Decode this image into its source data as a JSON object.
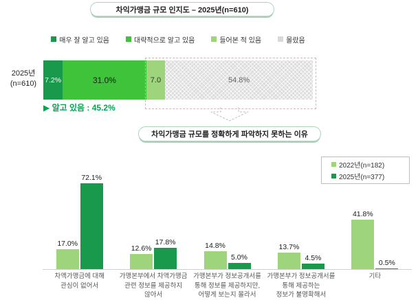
{
  "colors": {
    "green_dark": "#18994b",
    "green_bright": "#3ec33a",
    "green_light": "#9ed57c",
    "gray_segment": "#dcdcdc",
    "note_green": "#00a651",
    "dashed_outline": "#ccb8b8"
  },
  "top_chart": {
    "title": "차익가맹금 규모 인지도 – 2025년(n=610)",
    "row_label_line1": "2025년",
    "row_label_line2": "(n=610)",
    "known_note": "▶ 알고 있음 : 45.2%",
    "legend": [
      {
        "label": "매우 잘 알고 있음",
        "color": "#18994b"
      },
      {
        "label": "대략적으로 알고 있음",
        "color": "#3ec33a"
      },
      {
        "label": "들어본 적 있음",
        "color": "#9ed57c"
      },
      {
        "label": "몰랐음",
        "color": "#d9d9d9"
      }
    ],
    "segments": [
      {
        "label": "7.2%",
        "value": 7.2,
        "color": "#18994b"
      },
      {
        "label": "31.0%",
        "value": 31.0,
        "color": "#3ec33a"
      },
      {
        "label": "7.0",
        "value": 7.0,
        "color": "#9ed57c"
      },
      {
        "label": "54.8%",
        "value": 54.8,
        "color": "#dcdcdc"
      }
    ]
  },
  "bottom_chart": {
    "title": "차익가맹금 규모를 정확하게 파악하지 못하는 이유",
    "legend": [
      {
        "label": "2022년(n=182)",
        "color": "#9ed57c"
      },
      {
        "label": "2025년(n=377)",
        "color": "#18994b"
      }
    ]
  },
  "chart_data": [
    {
      "type": "bar",
      "subtype": "stacked-horizontal",
      "title": "차익가맹금 규모 인지도 – 2025년(n=610)",
      "categories": [
        "2025년(n=610)"
      ],
      "series": [
        {
          "name": "매우 잘 알고 있음",
          "values": [
            7.2
          ]
        },
        {
          "name": "대략적으로 알고 있음",
          "values": [
            31.0
          ]
        },
        {
          "name": "들어본 적 있음",
          "values": [
            7.0
          ]
        },
        {
          "name": "몰랐음",
          "values": [
            54.8
          ]
        }
      ],
      "unit": "%",
      "annotation": "▶ 알고 있음 : 45.2%",
      "xlim": [
        0,
        100
      ],
      "legend_position": "top"
    },
    {
      "type": "bar",
      "subtype": "grouped-vertical",
      "title": "차익가맹금 규모를 정확하게 파악하지 못하는 이유",
      "categories": [
        "차액가맹금에 대해\n관심이 없어서",
        "가맹본부에서 차액가맹금\n관련 정보를 제공하지\n않아서",
        "가맹본부가 정보공개서를\n통해 정보를 제공하지만,\n어떻게 보는지 몰라서",
        "가맹본부가 정보공개서를\n통해 제공하는\n정보가 불명확해서",
        "기타"
      ],
      "series": [
        {
          "name": "2022년(n=182)",
          "color": "#9ed57c",
          "values": [
            17.0,
            12.6,
            14.8,
            13.7,
            41.8
          ]
        },
        {
          "name": "2025년(n=377)",
          "color": "#18994b",
          "values": [
            72.1,
            17.8,
            5.0,
            4.5,
            0.5
          ]
        }
      ],
      "unit": "%",
      "ylim": [
        0,
        85
      ],
      "grid": false,
      "legend_position": "top-right"
    }
  ]
}
